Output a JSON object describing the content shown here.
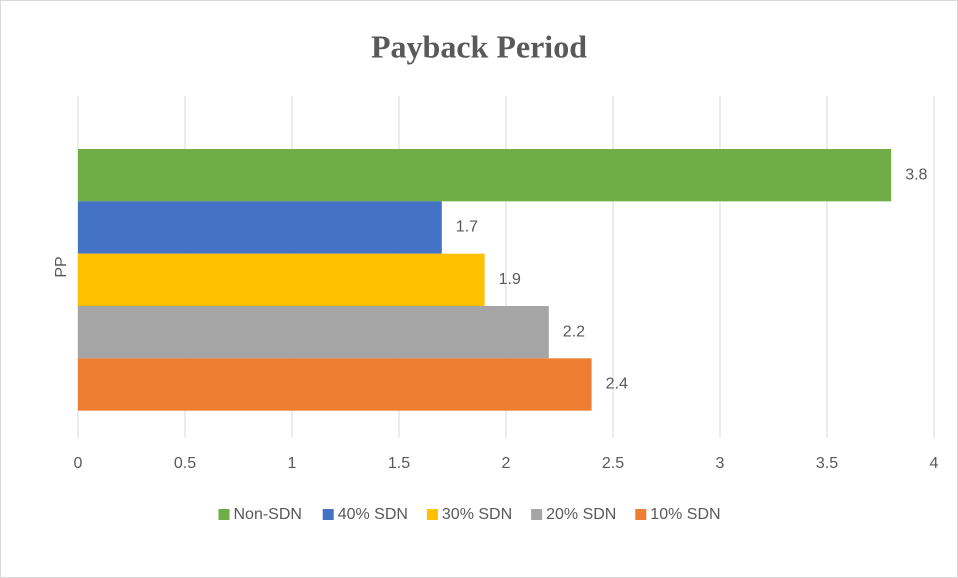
{
  "chart_data": {
    "type": "hbar",
    "title": "Payback Period",
    "categories": [
      "PP"
    ],
    "series": [
      {
        "name": "Non-SDN",
        "color": "#70ad47",
        "values": [
          3.8
        ]
      },
      {
        "name": "40% SDN",
        "color": "#4472c4",
        "values": [
          1.7
        ]
      },
      {
        "name": "30% SDN",
        "color": "#ffc000",
        "values": [
          1.9
        ]
      },
      {
        "name": "20% SDN",
        "color": "#a5a5a5",
        "values": [
          2.2
        ]
      },
      {
        "name": "10% SDN",
        "color": "#ed7d31",
        "values": [
          2.4
        ]
      }
    ],
    "xlim": [
      0,
      4
    ],
    "xticks": [
      0,
      0.5,
      1,
      1.5,
      2,
      2.5,
      3,
      3.5,
      4
    ],
    "grid": true,
    "legend": "bottom"
  }
}
